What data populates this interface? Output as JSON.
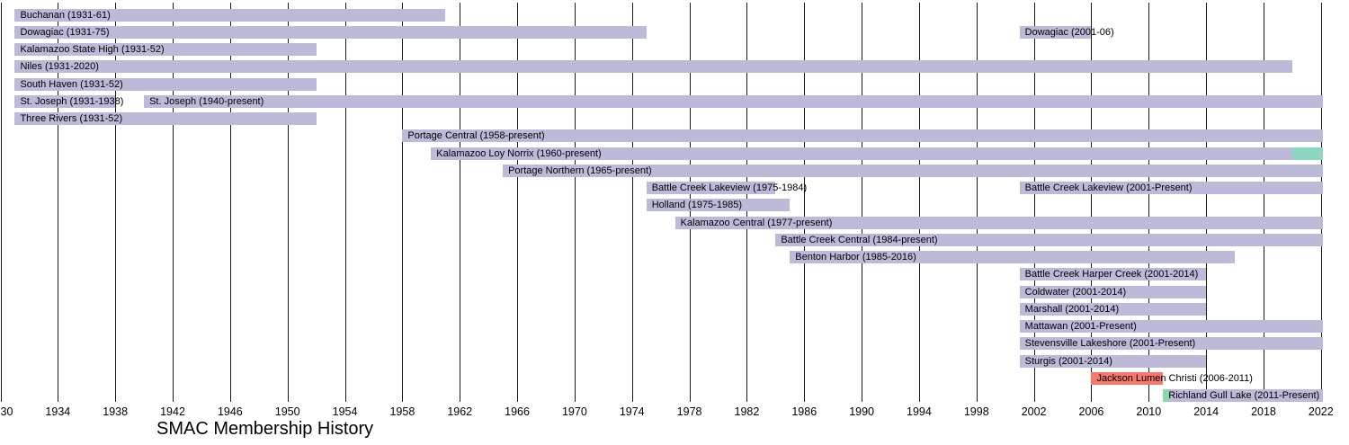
{
  "chart_data": {
    "type": "bar",
    "subtype": "gantt-timeline",
    "title": "SMAC Membership History",
    "x_axis": {
      "start": 1930,
      "end": 2022,
      "tick_interval": 4,
      "ticks": [
        1930,
        1934,
        1938,
        1942,
        1946,
        1950,
        1954,
        1958,
        1962,
        1966,
        1970,
        1974,
        1978,
        1982,
        1986,
        1990,
        1994,
        1998,
        2002,
        2006,
        2010,
        2014,
        2018,
        2022
      ],
      "grid": true
    },
    "legend": null,
    "colors": {
      "member_bar": "#bcbad9",
      "jackson_lumen_christi_bar": "#f5796c",
      "loy_norrix_highlight": "#8cd7c4",
      "gull_lake_highlight": "#8bd8a8",
      "gridline": "#1a1a1a",
      "text": "#000000",
      "background": "#ffffff"
    },
    "rows": [
      {
        "school": "Buchanan",
        "segments": [
          {
            "label": "Buchanan (1931-61)",
            "start": 1931,
            "end": 1961
          }
        ]
      },
      {
        "school": "Dowagiac",
        "segments": [
          {
            "label": "Dowagiac (1931-75)",
            "start": 1931,
            "end": 1975
          },
          {
            "label": "Dowagiac (2001-06)",
            "start": 2001,
            "end": 2006
          }
        ]
      },
      {
        "school": "Kalamazoo State High",
        "segments": [
          {
            "label": "Kalamazoo State High (1931-52)",
            "start": 1931,
            "end": 1952
          }
        ]
      },
      {
        "school": "Niles",
        "segments": [
          {
            "label": "Niles (1931-2020)",
            "start": 1931,
            "end": 2020
          }
        ]
      },
      {
        "school": "South Haven",
        "segments": [
          {
            "label": "South Haven (1931-52)",
            "start": 1931,
            "end": 1952
          }
        ]
      },
      {
        "school": "St. Joseph",
        "segments": [
          {
            "label": "St. Joseph (1931-1938)",
            "start": 1931,
            "end": 1938
          },
          {
            "label": "St. Joseph (1940-present)",
            "start": 1940,
            "end": 2022,
            "present": true
          }
        ]
      },
      {
        "school": "Three Rivers",
        "segments": [
          {
            "label": "Three Rivers (1931-52)",
            "start": 1931,
            "end": 1952
          }
        ]
      },
      {
        "school": "Portage Central",
        "segments": [
          {
            "label": "Portage Central (1958-present)",
            "start": 1958,
            "end": 2022,
            "present": true
          }
        ]
      },
      {
        "school": "Kalamazoo Loy Norrix",
        "segments": [
          {
            "label": "Kalamazoo Loy Norrix (1960-present)",
            "start": 1960,
            "end": 2022,
            "present": true,
            "highlight": {
              "start": 2020,
              "end": 2022,
              "present": true,
              "color_key": "loy_norrix_highlight"
            }
          }
        ]
      },
      {
        "school": "Portage Northern",
        "segments": [
          {
            "label": "Portage Northern (1965-present)",
            "start": 1965,
            "end": 2022,
            "present": true
          }
        ]
      },
      {
        "school": "Battle Creek Lakeview",
        "segments": [
          {
            "label": "Battle Creek Lakeview (1975-1984)",
            "start": 1975,
            "end": 1984
          },
          {
            "label": "Battle Creek Lakeview (2001-Present)",
            "start": 2001,
            "end": 2022,
            "present": true
          }
        ]
      },
      {
        "school": "Holland",
        "segments": [
          {
            "label": "Holland (1975-1985)",
            "start": 1975,
            "end": 1985
          }
        ]
      },
      {
        "school": "Kalamazoo Central",
        "segments": [
          {
            "label": "Kalamazoo Central (1977-present)",
            "start": 1977,
            "end": 2022,
            "present": true
          }
        ]
      },
      {
        "school": "Battle Creek Central",
        "segments": [
          {
            "label": "Battle Creek Central (1984-present)",
            "start": 1984,
            "end": 2022,
            "present": true
          }
        ]
      },
      {
        "school": "Benton Harbor",
        "segments": [
          {
            "label": "Benton Harbor (1985-2016)",
            "start": 1985,
            "end": 2016
          }
        ]
      },
      {
        "school": "Battle Creek Harper Creek",
        "segments": [
          {
            "label": "Battle Creek Harper Creek (2001-2014)",
            "start": 2001,
            "end": 2014
          }
        ]
      },
      {
        "school": "Coldwater",
        "segments": [
          {
            "label": "Coldwater (2001-2014)",
            "start": 2001,
            "end": 2014
          }
        ]
      },
      {
        "school": "Marshall",
        "segments": [
          {
            "label": "Marshall (2001-2014)",
            "start": 2001,
            "end": 2014
          }
        ]
      },
      {
        "school": "Mattawan",
        "segments": [
          {
            "label": "Mattawan (2001-Present)",
            "start": 2001,
            "end": 2022,
            "present": true
          }
        ]
      },
      {
        "school": "Stevensville Lakeshore",
        "segments": [
          {
            "label": "Stevensville Lakeshore (2001-Present)",
            "start": 2001,
            "end": 2022,
            "present": true
          }
        ]
      },
      {
        "school": "Sturgis",
        "segments": [
          {
            "label": "Sturgis (2001-2014)",
            "start": 2001,
            "end": 2014
          }
        ]
      },
      {
        "school": "Jackson Lumen Christi",
        "segments": [
          {
            "label": "Jackson Lumen Christi (2006-2011)",
            "start": 2006,
            "end": 2011,
            "color_key": "jackson_lumen_christi_bar"
          }
        ]
      },
      {
        "school": "Richland Gull Lake",
        "segments": [
          {
            "label": "Richland Gull Lake (2011-Present)",
            "start": 2011,
            "end": 2022,
            "present": true,
            "highlight": {
              "start": 2011,
              "end": 2011.45,
              "color_key": "gull_lake_highlight"
            }
          }
        ]
      }
    ]
  }
}
